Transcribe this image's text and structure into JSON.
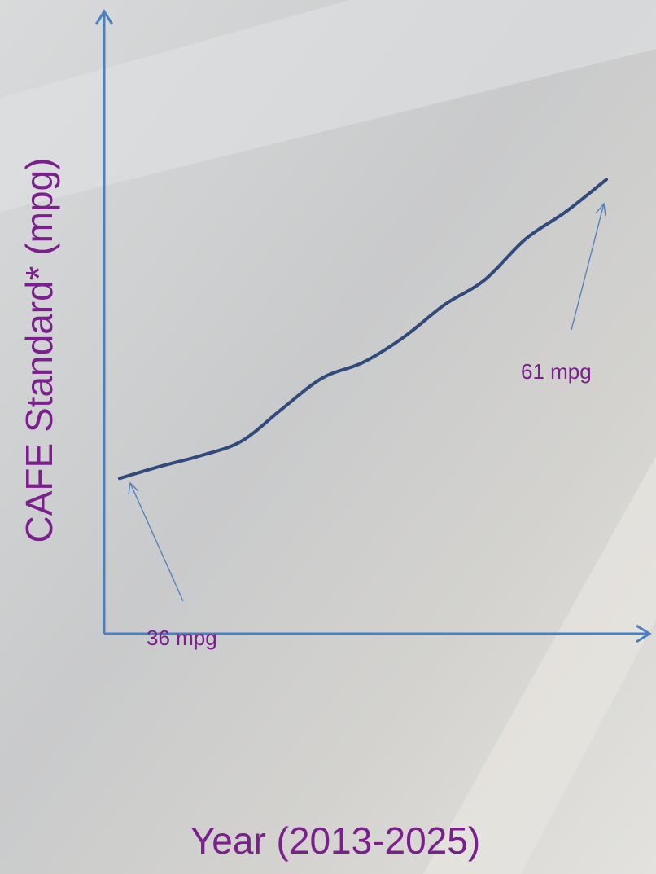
{
  "chart_data": {
    "type": "line",
    "xlabel": "Year (2013-2025)",
    "ylabel": "CAFE Standard* (mpg)",
    "values": [
      36,
      37.0,
      37.9,
      39.1,
      41.8,
      44.4,
      45.7,
      47.8,
      50.5,
      52.6,
      56.0,
      58.3,
      61
    ],
    "value_labels": [
      "36 mpg",
      null,
      null,
      null,
      null,
      null,
      null,
      null,
      null,
      null,
      null,
      null,
      "61 mpg"
    ],
    "color": "#2f4b7c",
    "ylim": [
      23,
      75
    ]
  }
}
